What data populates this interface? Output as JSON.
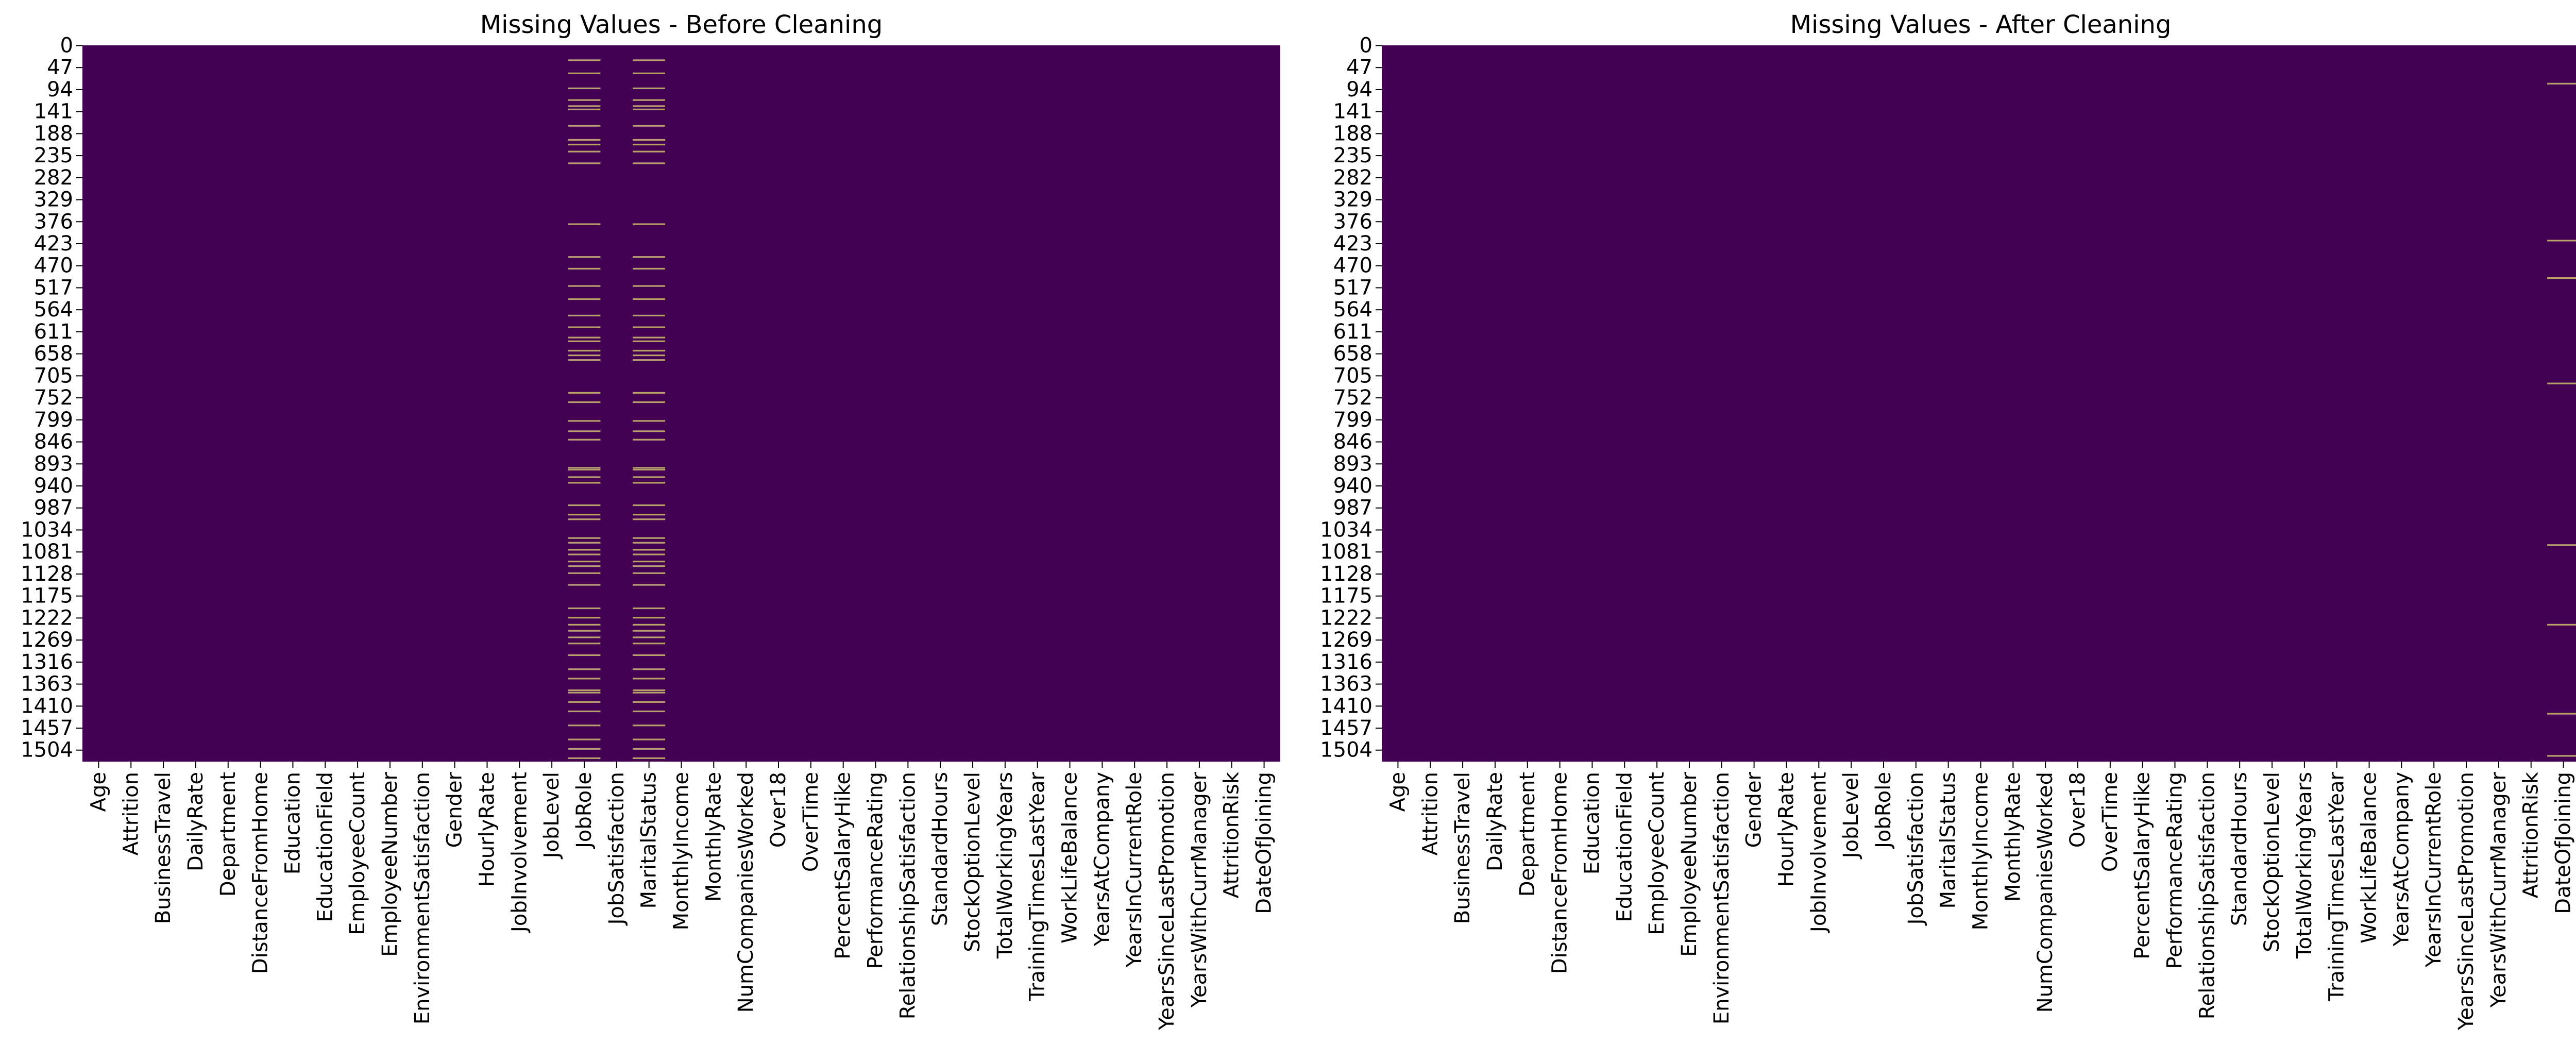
{
  "colors": {
    "present": "#440154",
    "missing": "#b8a06b",
    "tick": "#000000",
    "background": "#ffffff"
  },
  "chart_data": [
    {
      "type": "heatmap",
      "title": "Missing Values - Before Cleaning",
      "columns": [
        "Age",
        "Attrition",
        "BusinessTravel",
        "DailyRate",
        "Department",
        "DistanceFromHome",
        "Education",
        "EducationField",
        "EmployeeCount",
        "EmployeeNumber",
        "EnvironmentSatisfaction",
        "Gender",
        "HourlyRate",
        "JobInvolvement",
        "JobLevel",
        "JobRole",
        "JobSatisfaction",
        "MaritalStatus",
        "MonthlyIncome",
        "MonthlyRate",
        "NumCompaniesWorked",
        "Over18",
        "OverTime",
        "PercentSalaryHike",
        "PerformanceRating",
        "RelationshipSatisfaction",
        "StandardHours",
        "StockOptionLevel",
        "TotalWorkingYears",
        "TrainingTimesLastYear",
        "WorkLifeBalance",
        "YearsAtCompany",
        "YearsInCurrentRole",
        "YearsSinceLastPromotion",
        "YearsWithCurrManager",
        "AttritionRisk",
        "DateOfJoining"
      ],
      "row_ticks": [
        "0",
        "47",
        "94",
        "141",
        "188",
        "235",
        "282",
        "329",
        "376",
        "423",
        "470",
        "517",
        "564",
        "611",
        "658",
        "705",
        "752",
        "799",
        "846",
        "893",
        "940",
        "987",
        "1034",
        "1081",
        "1128",
        "1175",
        "1222",
        "1269",
        "1316",
        "1363",
        "1410",
        "1457",
        "1504"
      ],
      "n_rows": 1529,
      "missing": [
        {
          "column": "JobRole",
          "rows": [
            30,
            58,
            90,
            115,
            128,
            135,
            170,
            200,
            210,
            225,
            250,
            380,
            450,
            475,
            512,
            540,
            575,
            600,
            622,
            630,
            650,
            660,
            670,
            740,
            760,
            800,
            822,
            840,
            900,
            904,
            920,
            932,
            980,
            1000,
            1010,
            1050,
            1060,
            1075,
            1085,
            1100,
            1110,
            1125,
            1150,
            1200,
            1220,
            1235,
            1248,
            1262,
            1275,
            1300,
            1330,
            1350,
            1375,
            1380,
            1400,
            1420,
            1450,
            1480,
            1500,
            1520
          ]
        },
        {
          "column": "MaritalStatus",
          "rows": [
            30,
            58,
            90,
            115,
            128,
            135,
            170,
            200,
            210,
            225,
            250,
            380,
            450,
            475,
            512,
            540,
            575,
            600,
            622,
            630,
            650,
            660,
            670,
            740,
            760,
            800,
            822,
            840,
            900,
            904,
            920,
            932,
            980,
            1000,
            1010,
            1050,
            1060,
            1075,
            1085,
            1100,
            1110,
            1125,
            1150,
            1200,
            1220,
            1235,
            1248,
            1262,
            1275,
            1300,
            1330,
            1350,
            1375,
            1380,
            1400,
            1420,
            1450,
            1480,
            1500,
            1520
          ]
        }
      ]
    },
    {
      "type": "heatmap",
      "title": "Missing Values - After Cleaning",
      "columns": [
        "Age",
        "Attrition",
        "BusinessTravel",
        "DailyRate",
        "Department",
        "DistanceFromHome",
        "Education",
        "EducationField",
        "EmployeeCount",
        "EmployeeNumber",
        "EnvironmentSatisfaction",
        "Gender",
        "HourlyRate",
        "JobInvolvement",
        "JobLevel",
        "JobRole",
        "JobSatisfaction",
        "MaritalStatus",
        "MonthlyIncome",
        "MonthlyRate",
        "NumCompaniesWorked",
        "Over18",
        "OverTime",
        "PercentSalaryHike",
        "PerformanceRating",
        "RelationshipSatisfaction",
        "StandardHours",
        "StockOptionLevel",
        "TotalWorkingYears",
        "TrainingTimesLastYear",
        "WorkLifeBalance",
        "YearsAtCompany",
        "YearsInCurrentRole",
        "YearsSinceLastPromotion",
        "YearsWithCurrManager",
        "AttritionRisk",
        "DateOfJoining"
      ],
      "row_ticks": [
        "0",
        "47",
        "94",
        "141",
        "188",
        "235",
        "282",
        "329",
        "376",
        "423",
        "470",
        "517",
        "564",
        "611",
        "658",
        "705",
        "752",
        "799",
        "846",
        "893",
        "940",
        "987",
        "1034",
        "1081",
        "1128",
        "1175",
        "1222",
        "1269",
        "1316",
        "1363",
        "1410",
        "1457",
        "1504"
      ],
      "n_rows": 1529,
      "missing": [
        {
          "column": "DateOfJoining",
          "rows": [
            80,
            415,
            495,
            720,
            1065,
            1235,
            1425,
            1515
          ]
        }
      ]
    }
  ]
}
